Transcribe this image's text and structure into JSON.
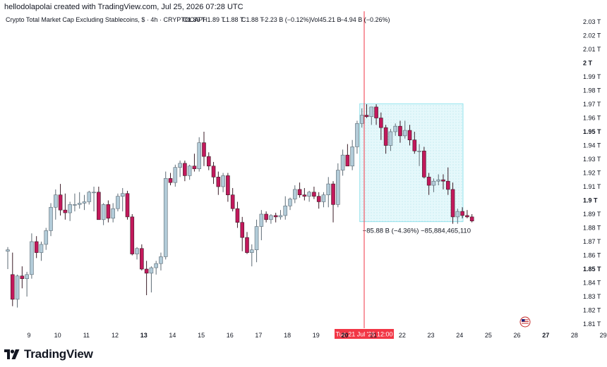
{
  "header": {
    "credit": "hellodolapolai created with TradingView.com, Jul 25, 2026 07:28 UTC"
  },
  "legend": {
    "symbol": "Crypto Total Market Cap Excluding Stablecoins, $ · 4h · CRYPTOCAP",
    "open": "O1.89 T",
    "high": "H1.89 T",
    "low": "L1.88 T",
    "close": "C1.88 T",
    "change": "−2.23 B (−0.12%)",
    "volume": "Vol45.21 B",
    "vol_change": "−4.94 B (−0.26%)"
  },
  "cursor_label": "Tue 21 Jul '26   12:00",
  "measure_label": "−85.88 B (−4.36%) −85,884,465,110",
  "brand": "TradingView",
  "colors": {
    "up": "#b2cbd8",
    "up_border": "#5d6b75",
    "down": "#c2185b",
    "down_border": "#3b1c27",
    "crosshair": "#f23645",
    "measure_fill": "#e0f7fa",
    "measure_border": "#80deea"
  },
  "chart_data": {
    "type": "candlestick",
    "y_unit": "T",
    "ylim": [
      1.805,
      2.035
    ],
    "y_ticks": [
      {
        "value": 2.03,
        "label": "2.03 T"
      },
      {
        "value": 2.02,
        "label": "2.02 T"
      },
      {
        "value": 2.01,
        "label": "2.01 T"
      },
      {
        "value": 2.0,
        "label": "2 T",
        "bold": true
      },
      {
        "value": 1.99,
        "label": "1.99 T"
      },
      {
        "value": 1.98,
        "label": "1.98 T"
      },
      {
        "value": 1.97,
        "label": "1.97 T"
      },
      {
        "value": 1.96,
        "label": "1.96 T"
      },
      {
        "value": 1.95,
        "label": "1.95 T",
        "bold": true
      },
      {
        "value": 1.94,
        "label": "1.94 T"
      },
      {
        "value": 1.93,
        "label": "1.93 T"
      },
      {
        "value": 1.92,
        "label": "1.92 T"
      },
      {
        "value": 1.91,
        "label": "1.91 T"
      },
      {
        "value": 1.9,
        "label": "1.9 T",
        "bold": true
      },
      {
        "value": 1.89,
        "label": "1.89 T"
      },
      {
        "value": 1.88,
        "label": "1.88 T"
      },
      {
        "value": 1.87,
        "label": "1.87 T"
      },
      {
        "value": 1.86,
        "label": "1.86 T"
      },
      {
        "value": 1.85,
        "label": "1.85 T",
        "bold": true
      },
      {
        "value": 1.84,
        "label": "1.84 T"
      },
      {
        "value": 1.83,
        "label": "1.83 T"
      },
      {
        "value": 1.82,
        "label": "1.82 T"
      },
      {
        "value": 1.81,
        "label": "1.81 T"
      }
    ],
    "x_ticks": [
      {
        "label": "9",
        "bold": false
      },
      {
        "label": "10",
        "bold": false
      },
      {
        "label": "11",
        "bold": false
      },
      {
        "label": "12",
        "bold": false
      },
      {
        "label": "13",
        "bold": true
      },
      {
        "label": "14",
        "bold": false
      },
      {
        "label": "15",
        "bold": false
      },
      {
        "label": "16",
        "bold": false
      },
      {
        "label": "17",
        "bold": false
      },
      {
        "label": "18",
        "bold": false
      },
      {
        "label": "19",
        "bold": false
      },
      {
        "label": "20",
        "bold": true
      },
      {
        "label": "21",
        "bold": false
      },
      {
        "label": "22",
        "bold": false
      },
      {
        "label": "23",
        "bold": false
      },
      {
        "label": "24",
        "bold": false
      },
      {
        "label": "25",
        "bold": false
      },
      {
        "label": "26",
        "bold": false
      },
      {
        "label": "27",
        "bold": true
      },
      {
        "label": "28",
        "bold": false
      },
      {
        "label": "29",
        "bold": false
      }
    ],
    "candles": [
      [
        1.863,
        1.866,
        1.85,
        1.864
      ],
      [
        1.846,
        1.862,
        1.823,
        1.828
      ],
      [
        1.828,
        1.846,
        1.822,
        1.845
      ],
      [
        1.845,
        1.852,
        1.836,
        1.843
      ],
      [
        1.843,
        1.848,
        1.83,
        1.846
      ],
      [
        1.846,
        1.876,
        1.843,
        1.87
      ],
      [
        1.87,
        1.874,
        1.858,
        1.862
      ],
      [
        1.862,
        1.87,
        1.856,
        1.868
      ],
      [
        1.868,
        1.88,
        1.864,
        1.878
      ],
      [
        1.878,
        1.898,
        1.874,
        1.895
      ],
      [
        1.895,
        1.908,
        1.886,
        1.904
      ],
      [
        1.904,
        1.912,
        1.889,
        1.893
      ],
      [
        1.893,
        1.905,
        1.886,
        1.891
      ],
      [
        1.891,
        1.899,
        1.885,
        1.897
      ],
      [
        1.897,
        1.905,
        1.892,
        1.897
      ],
      [
        1.897,
        1.906,
        1.894,
        1.898
      ],
      [
        1.898,
        1.904,
        1.893,
        1.899
      ],
      [
        1.899,
        1.907,
        1.897,
        1.906
      ],
      [
        1.906,
        1.91,
        1.892,
        1.906
      ],
      [
        1.906,
        1.91,
        1.886,
        1.886
      ],
      [
        1.886,
        1.898,
        1.882,
        1.897
      ],
      [
        1.897,
        1.9,
        1.884,
        1.887
      ],
      [
        1.887,
        1.898,
        1.884,
        1.894
      ],
      [
        1.894,
        1.905,
        1.892,
        1.903
      ],
      [
        1.903,
        1.909,
        1.892,
        1.905
      ],
      [
        1.905,
        1.907,
        1.886,
        1.888
      ],
      [
        1.888,
        1.89,
        1.86,
        1.861
      ],
      [
        1.861,
        1.866,
        1.857,
        1.865
      ],
      [
        1.865,
        1.868,
        1.849,
        1.85
      ],
      [
        1.85,
        1.856,
        1.831,
        1.847
      ],
      [
        1.847,
        1.852,
        1.833,
        1.851
      ],
      [
        1.851,
        1.856,
        1.846,
        1.854
      ],
      [
        1.854,
        1.862,
        1.849,
        1.859
      ],
      [
        1.859,
        1.921,
        1.857,
        1.916
      ],
      [
        1.916,
        1.92,
        1.911,
        1.913
      ],
      [
        1.913,
        1.926,
        1.91,
        1.924
      ],
      [
        1.924,
        1.929,
        1.917,
        1.927
      ],
      [
        1.927,
        1.929,
        1.914,
        1.918
      ],
      [
        1.918,
        1.926,
        1.915,
        1.925
      ],
      [
        1.925,
        1.934,
        1.921,
        1.923
      ],
      [
        1.923,
        1.946,
        1.921,
        1.942
      ],
      [
        1.942,
        1.95,
        1.925,
        1.932
      ],
      [
        1.932,
        1.935,
        1.922,
        1.925
      ],
      [
        1.925,
        1.928,
        1.912,
        1.917
      ],
      [
        1.917,
        1.921,
        1.904,
        1.91
      ],
      [
        1.91,
        1.92,
        1.906,
        1.918
      ],
      [
        1.918,
        1.92,
        1.899,
        1.904
      ],
      [
        1.904,
        1.909,
        1.892,
        1.894
      ],
      [
        1.894,
        1.899,
        1.88,
        1.884
      ],
      [
        1.884,
        1.888,
        1.863,
        1.873
      ],
      [
        1.873,
        1.877,
        1.861,
        1.862
      ],
      [
        1.862,
        1.868,
        1.852,
        1.864
      ],
      [
        1.864,
        1.886,
        1.855,
        1.881
      ],
      [
        1.881,
        1.893,
        1.871,
        1.89
      ],
      [
        1.89,
        1.892,
        1.884,
        1.886
      ],
      [
        1.886,
        1.89,
        1.883,
        1.889
      ],
      [
        1.889,
        1.891,
        1.884,
        1.888
      ],
      [
        1.888,
        1.893,
        1.886,
        1.889
      ],
      [
        1.889,
        1.903,
        1.886,
        1.896
      ],
      [
        1.896,
        1.902,
        1.893,
        1.901
      ],
      [
        1.901,
        1.911,
        1.898,
        1.908
      ],
      [
        1.908,
        1.913,
        1.902,
        1.904
      ],
      [
        1.904,
        1.909,
        1.9,
        1.903
      ],
      [
        1.903,
        1.907,
        1.899,
        1.906
      ],
      [
        1.906,
        1.91,
        1.901,
        1.903
      ],
      [
        1.903,
        1.906,
        1.894,
        1.899
      ],
      [
        1.899,
        1.906,
        1.895,
        1.904
      ],
      [
        1.904,
        1.917,
        1.895,
        1.912
      ],
      [
        1.912,
        1.914,
        1.884,
        1.897
      ],
      [
        1.897,
        1.927,
        1.895,
        1.922
      ],
      [
        1.922,
        1.937,
        1.918,
        1.933
      ],
      [
        1.933,
        1.941,
        1.926,
        1.925
      ],
      [
        1.925,
        1.944,
        1.922,
        1.939
      ],
      [
        1.939,
        1.958,
        1.934,
        1.956
      ],
      [
        1.956,
        1.967,
        1.953,
        1.962
      ],
      [
        1.962,
        1.97,
        1.96,
        1.961
      ],
      [
        1.961,
        1.968,
        1.955,
        1.968
      ],
      [
        1.968,
        1.97,
        1.955,
        1.96
      ],
      [
        1.96,
        1.964,
        1.944,
        1.953
      ],
      [
        1.953,
        1.955,
        1.934,
        1.94
      ],
      [
        1.94,
        1.952,
        1.936,
        1.95
      ],
      [
        1.95,
        1.956,
        1.947,
        1.954
      ],
      [
        1.954,
        1.958,
        1.942,
        1.947
      ],
      [
        1.947,
        1.958,
        1.945,
        1.951
      ],
      [
        1.951,
        1.955,
        1.94,
        1.944
      ],
      [
        1.944,
        1.95,
        1.934,
        1.936
      ],
      [
        1.936,
        1.941,
        1.925,
        1.936
      ],
      [
        1.936,
        1.939,
        1.916,
        1.917
      ],
      [
        1.917,
        1.92,
        1.904,
        1.911
      ],
      [
        1.911,
        1.916,
        1.906,
        1.914
      ],
      [
        1.914,
        1.919,
        1.911,
        1.915
      ],
      [
        1.915,
        1.919,
        1.908,
        1.914
      ],
      [
        1.914,
        1.924,
        1.904,
        1.908
      ],
      [
        1.908,
        1.913,
        1.883,
        1.888
      ],
      [
        1.888,
        1.894,
        1.883,
        1.892
      ],
      [
        1.892,
        1.895,
        1.887,
        1.889
      ],
      [
        1.889,
        1.893,
        1.887,
        1.888
      ],
      [
        1.888,
        1.89,
        1.884,
        1.885
      ]
    ],
    "last_candle": {
      "open": 1.89,
      "high": 1.89,
      "low": 1.88,
      "close": 1.88,
      "change": "−2.23 B (−0.12%)"
    },
    "measure": {
      "from_value": 1.9704,
      "to_value": 1.8845,
      "change": "−85.88 B",
      "change_pct": "−4.36%",
      "change_raw": "−85,884,465,110"
    }
  }
}
